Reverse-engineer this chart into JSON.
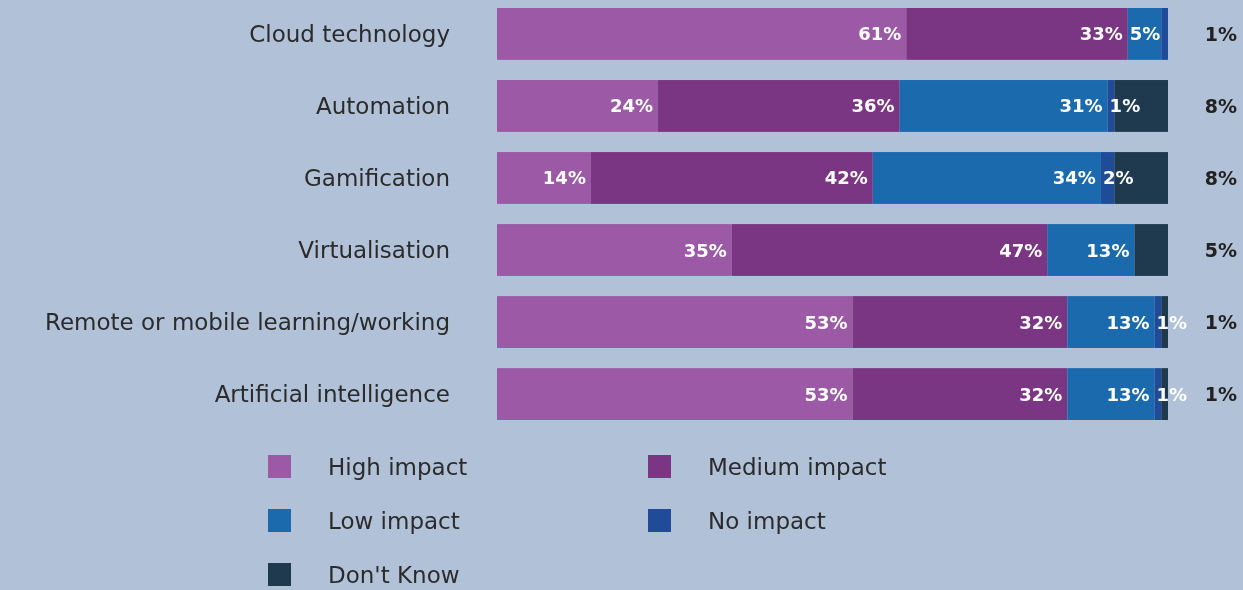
{
  "chart_data": {
    "type": "bar",
    "orientation": "horizontal",
    "stacked": true,
    "xlim": [
      0,
      100
    ],
    "legend": "bottom",
    "categories": [
      "Cloud technology",
      "Automation",
      "Gamification",
      "Virtualisation",
      "Remote or mobile learning/working",
      "Artificial intelligence"
    ],
    "series": [
      {
        "name": "High impact",
        "color": "#9b59a6",
        "values": [
          61,
          24,
          14,
          35,
          53,
          53
        ],
        "value_labels": [
          "61%",
          "24%",
          "14%",
          "35%",
          "53%",
          "53%"
        ]
      },
      {
        "name": "Medium impact",
        "color": "#7b3683",
        "values": [
          33,
          36,
          42,
          47,
          32,
          32
        ],
        "value_labels": [
          "33%",
          "36%",
          "42%",
          "47%",
          "32%",
          "32%"
        ]
      },
      {
        "name": "Low impact",
        "color": "#1a6aad",
        "values": [
          5,
          31,
          34,
          13,
          13,
          13
        ],
        "value_labels": [
          "5%",
          "31%",
          "34%",
          "13%",
          "13%",
          "13%"
        ]
      },
      {
        "name": "No impact",
        "color": "#1f4b99",
        "values": [
          1,
          1,
          2,
          null,
          1,
          1
        ],
        "value_labels": [
          "1%",
          "1%",
          "2%",
          null,
          "1%",
          "1%"
        ]
      },
      {
        "name": "Don't Know",
        "color": "#1f3a4f",
        "values": [
          null,
          8,
          8,
          5,
          1,
          1
        ],
        "value_labels": [
          null,
          "8%",
          "8%",
          "5%",
          "1%",
          "1%"
        ]
      }
    ]
  }
}
